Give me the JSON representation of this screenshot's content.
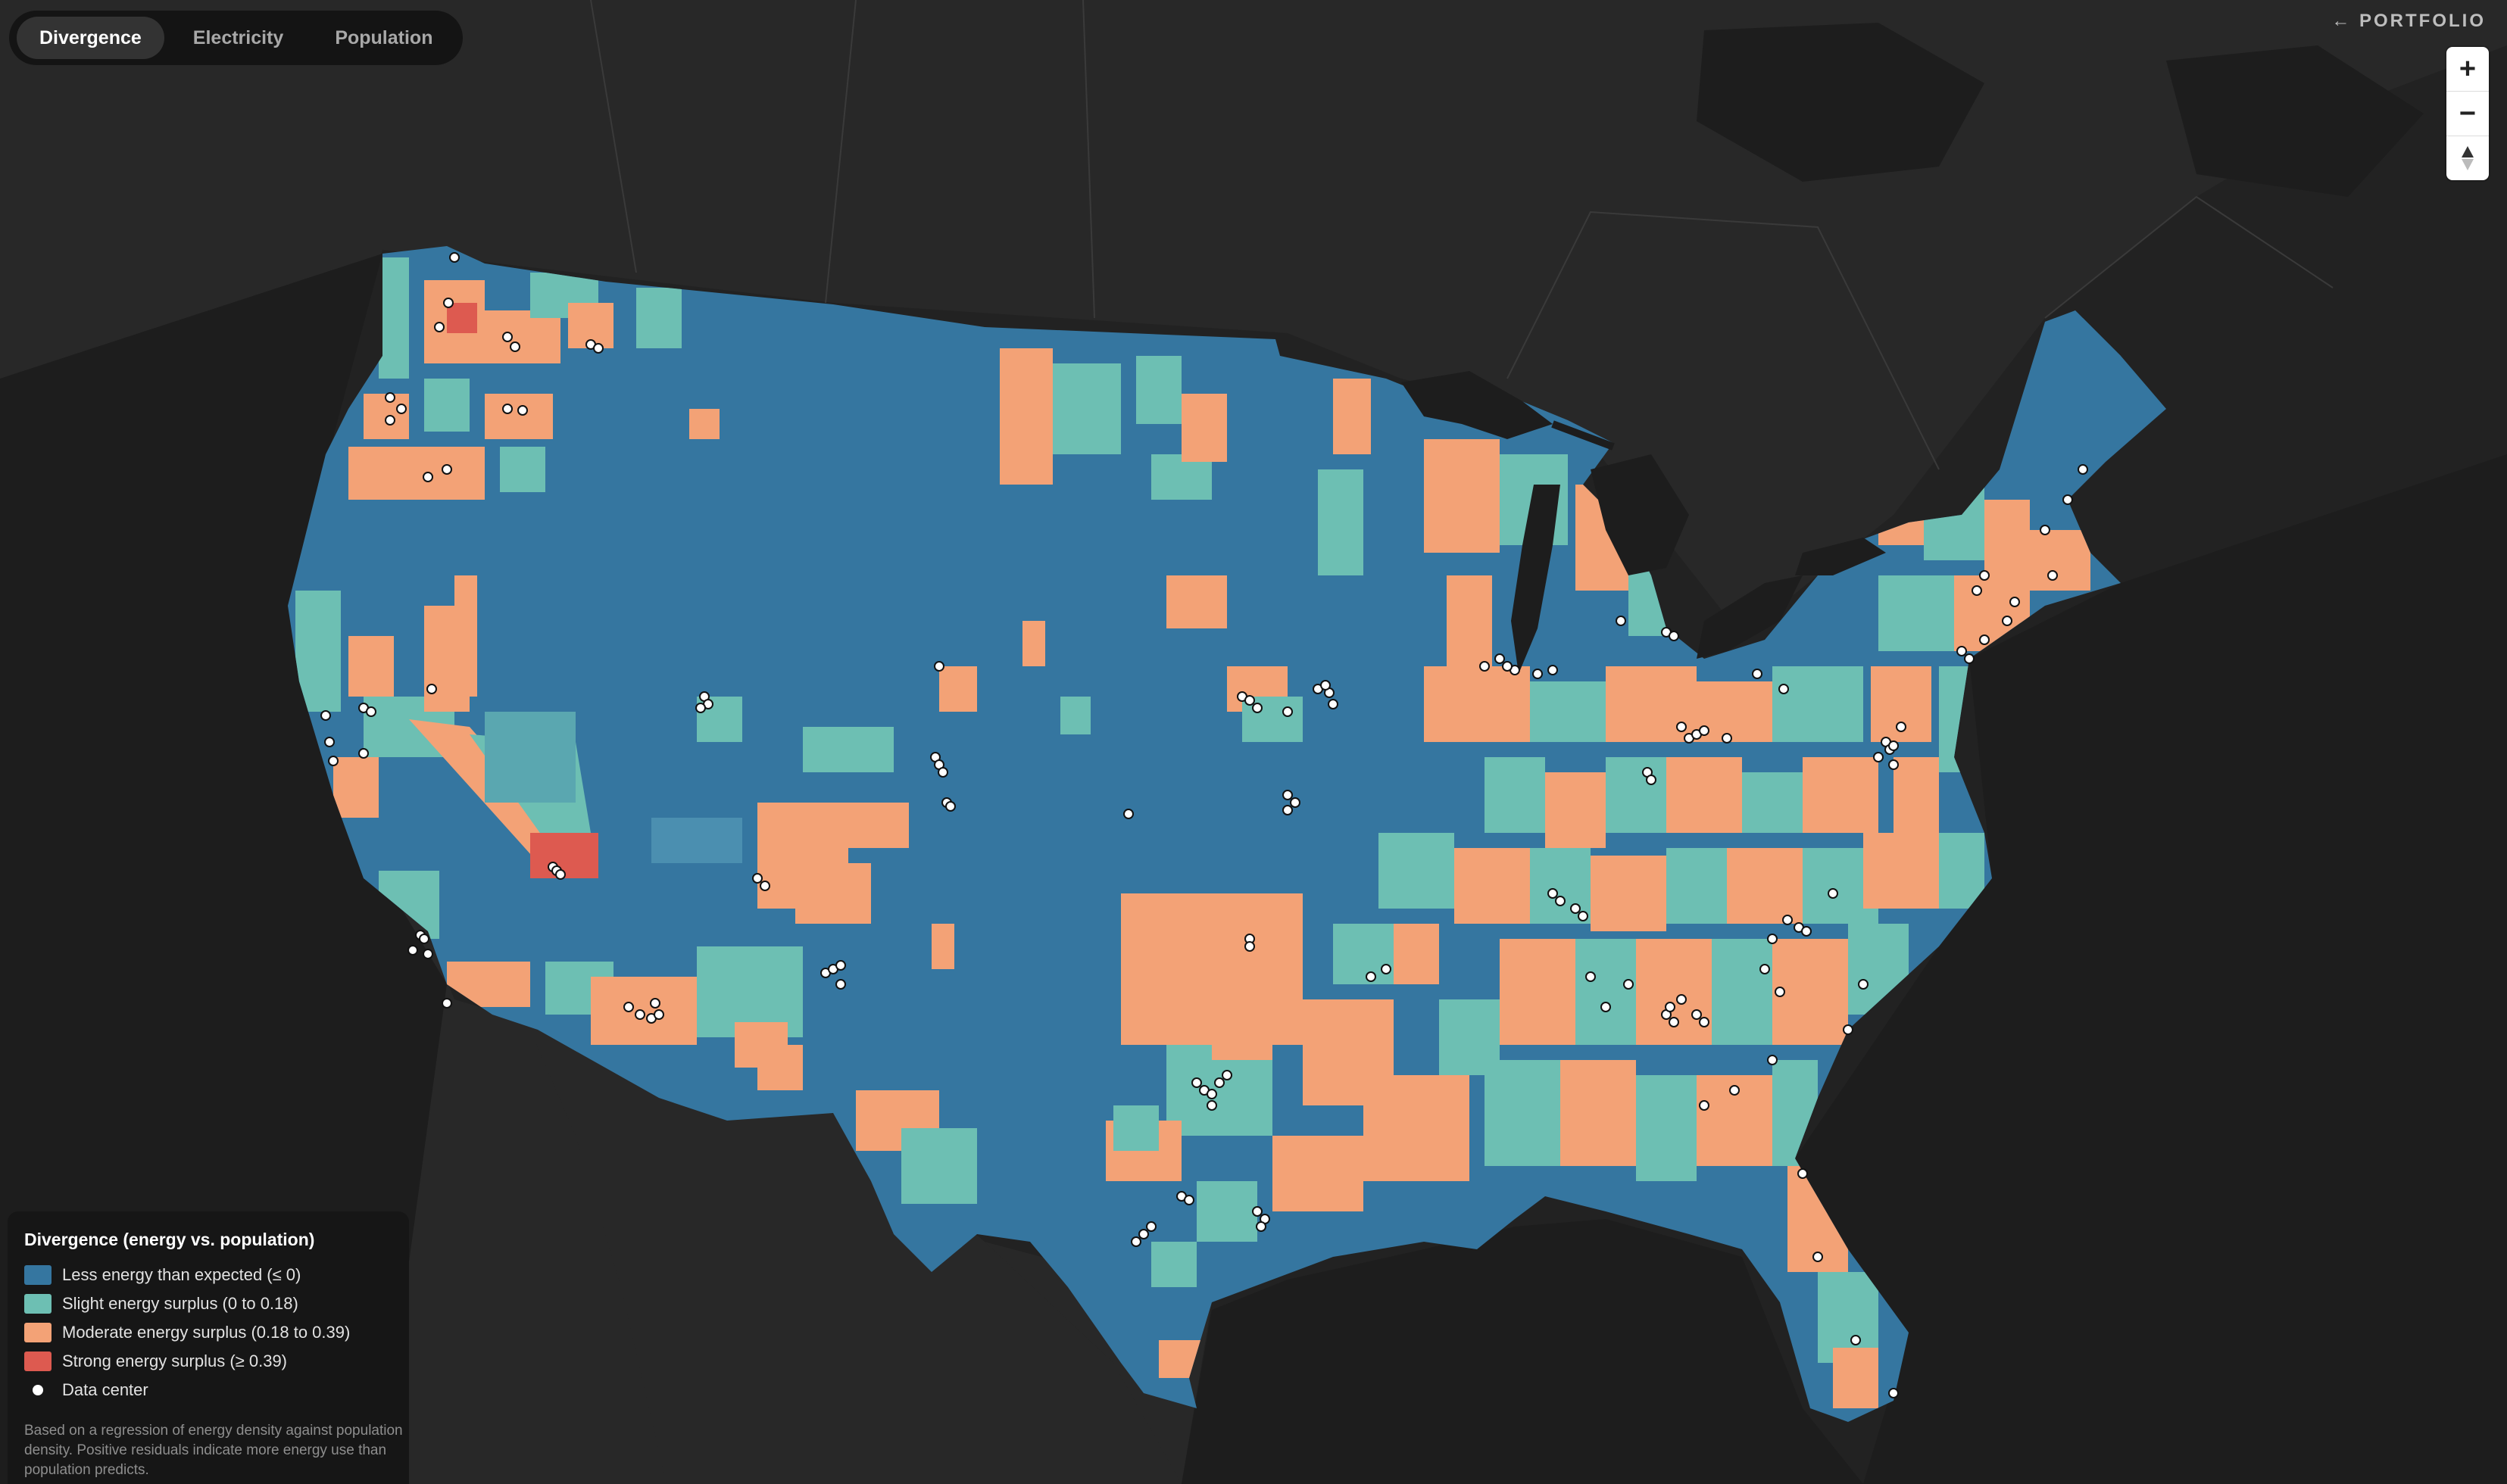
{
  "tabs": [
    {
      "label": "Divergence",
      "active": true
    },
    {
      "label": "Electricity",
      "active": false
    },
    {
      "label": "Population",
      "active": false
    }
  ],
  "portfolio_label": "← PORTFOLIO",
  "zoom": {
    "in_symbol": "+",
    "out_symbol": "−"
  },
  "legend": {
    "title": "Divergence (energy vs. population)",
    "items": [
      {
        "label": "Less energy than expected (≤ 0)",
        "color": "#3576a0"
      },
      {
        "label": "Slight energy surplus (0 to 0.18)",
        "color": "#6dbfb3"
      },
      {
        "label": "Moderate energy surplus (0.18 to 0.39)",
        "color": "#f3a276"
      },
      {
        "label": "Strong energy surplus (≥ 0.39)",
        "color": "#dd5a50"
      },
      {
        "label": "Data center",
        "color": "#ffffff"
      }
    ],
    "note": "Based on a regression of energy density against population density. Positive residuals indicate more energy use than population predicts."
  },
  "colors": {
    "background": "#222222",
    "land": "#2b2b2b",
    "water": "#1c1c1c"
  }
}
